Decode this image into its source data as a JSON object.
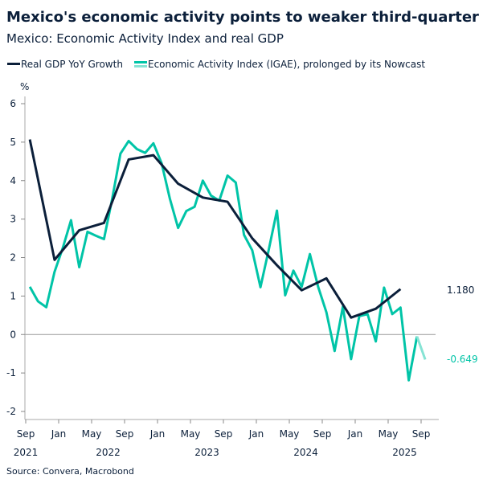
{
  "title": "Mexico's economic activity points to weaker third-quarter",
  "subtitle": "Mexico: Economic Activity Index and real GDP",
  "source": "Source: Convera, Macrobond",
  "colors": {
    "gdp": "#0b1f3a",
    "igae": "#00c4a7",
    "nowcast": "#86e3d4",
    "axis": "#999999"
  },
  "chart_data": {
    "type": "line",
    "title": "Mexico: Economic Activity Index and real GDP",
    "ylabel": "%",
    "ylim": [
      -2,
      6
    ],
    "yticks": [
      6,
      5,
      4,
      3,
      2,
      1,
      0,
      -1,
      -2
    ],
    "xrange": [
      "2021-09",
      "2025-10"
    ],
    "xtick_months": [
      "Sep",
      "Jan",
      "May",
      "Sep",
      "Jan",
      "May",
      "Sep",
      "Jan",
      "May",
      "Sep",
      "Jan",
      "May",
      "Sep"
    ],
    "xtick_years": [
      "2021",
      "2022",
      "2023",
      "2024",
      "2025"
    ],
    "grid": false,
    "legend_position": "top-left",
    "series": [
      {
        "name": "Real GDP YoY Growth",
        "x": [
          "2021-09",
          "2021-12",
          "2022-03",
          "2022-06",
          "2022-09",
          "2022-12",
          "2023-03",
          "2023-06",
          "2023-09",
          "2023-12",
          "2024-03",
          "2024-06",
          "2024-09",
          "2024-12",
          "2025-03",
          "2025-06"
        ],
        "values": [
          5.07,
          1.94,
          2.71,
          2.9,
          4.55,
          4.66,
          3.92,
          3.56,
          3.45,
          2.5,
          1.8,
          1.15,
          1.46,
          0.44,
          0.67,
          1.18
        ],
        "end_label": "1.180"
      },
      {
        "name": "Economic Activity Index (IGAE), prolonged by its Nowcast",
        "x_start": "2021-09",
        "frequency": "monthly",
        "values": [
          1.24,
          0.86,
          0.71,
          1.63,
          2.25,
          2.97,
          1.75,
          2.67,
          2.57,
          2.48,
          3.53,
          4.7,
          5.03,
          4.82,
          4.72,
          4.97,
          4.45,
          3.53,
          2.77,
          3.21,
          3.32,
          4.0,
          3.61,
          3.48,
          4.13,
          3.95,
          2.59,
          2.19,
          1.23,
          2.2,
          3.22,
          1.02,
          1.66,
          1.24,
          2.09,
          1.24,
          0.58,
          -0.43,
          0.72,
          -0.64,
          0.48,
          0.53,
          -0.18,
          1.22,
          0.53,
          0.7,
          -1.19,
          -0.05,
          -0.649
        ],
        "nowcast_from": "2025-08",
        "end_label": "-0.649"
      }
    ]
  }
}
